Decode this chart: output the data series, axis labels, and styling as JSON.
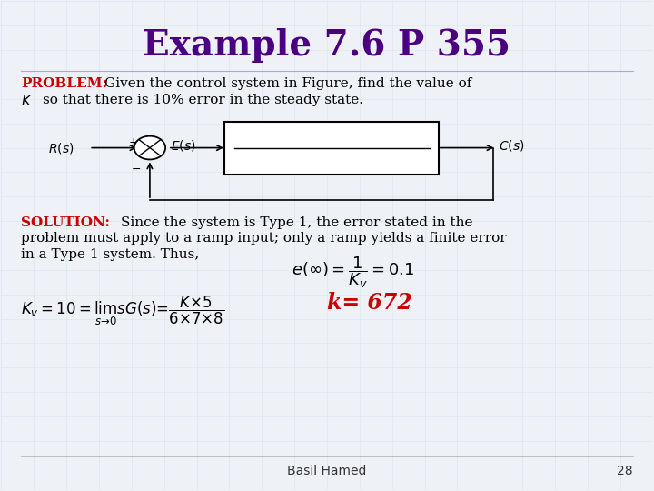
{
  "title": "Example 7.6 P 355",
  "title_color": "#4B0082",
  "title_fontsize": 28,
  "bg_color": "#eef2f7",
  "problem_label": "PROBLEM:",
  "problem_label_color": "#cc0000",
  "solution_label": "SOLUTION:",
  "solution_label_color": "#cc0000",
  "footer_name": "Basil Hamed",
  "footer_page": "28",
  "arrow_color": "#000000",
  "text_color": "#000000",
  "k_result": "k= 672",
  "k_result_color": "#cc0000",
  "grid_color": "#c8d8e8",
  "line_color": "#aaaacc"
}
